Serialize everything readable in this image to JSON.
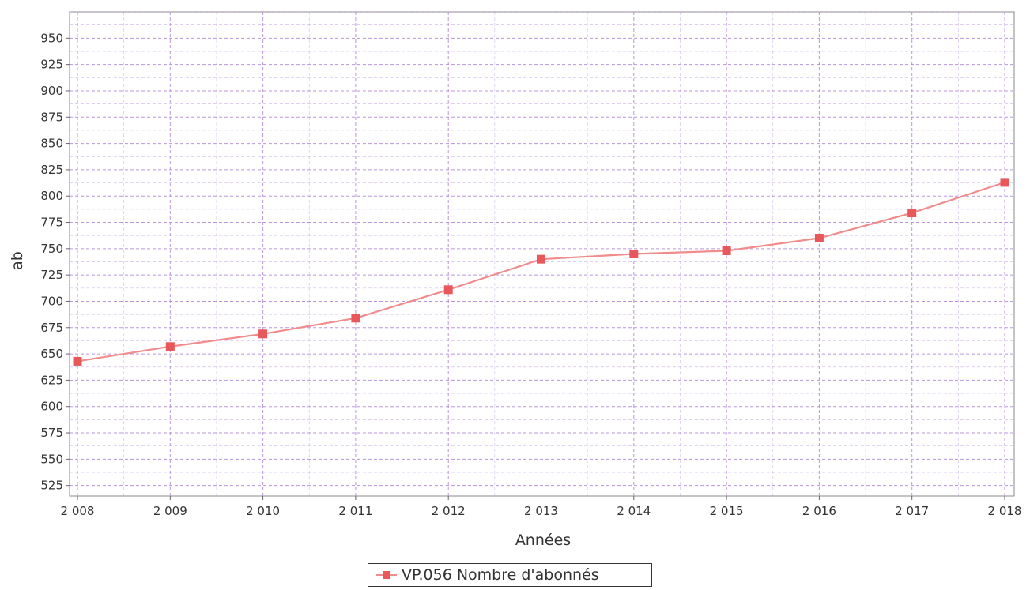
{
  "chart_data": {
    "type": "line",
    "xlabel": "Années",
    "ylabel": "ab",
    "categories": [
      "2 008",
      "2 009",
      "2 010",
      "2 011",
      "2 012",
      "2 013",
      "2 014",
      "2 015",
      "2 016",
      "2 017",
      "2 018"
    ],
    "series": [
      {
        "name": "VP.056 Nombre d'abonnés",
        "values": [
          643,
          657,
          669,
          684,
          711,
          740,
          745,
          748,
          760,
          784,
          813
        ],
        "color": "#e8585a",
        "line_color": "#f08c8c"
      }
    ],
    "ylim": [
      515,
      975
    ],
    "yticks": [
      525,
      550,
      575,
      600,
      625,
      650,
      675,
      700,
      725,
      750,
      775,
      800,
      825,
      850,
      875,
      900,
      925,
      950
    ],
    "grid": true,
    "grid_color": "#b48adb",
    "legend_position": "bottom-center"
  }
}
